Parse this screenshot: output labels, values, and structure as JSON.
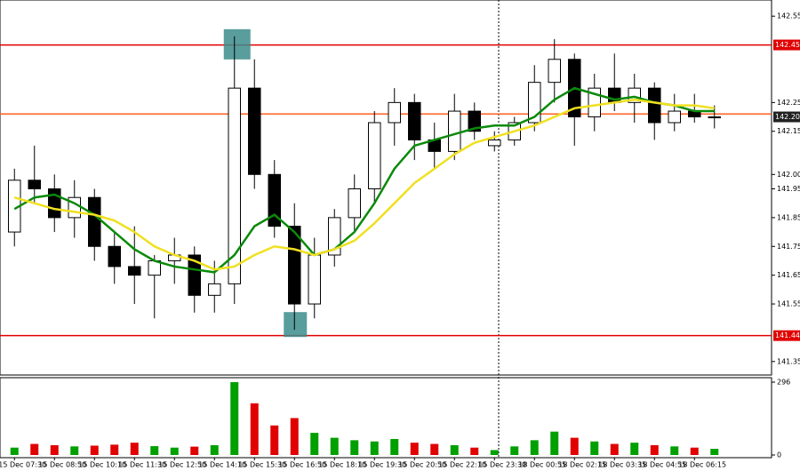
{
  "chart_data": {
    "type": "candlestick",
    "categories": [
      "15 Dec 07:30",
      null,
      "15 Dec 08:50",
      null,
      "15 Dec 10:10",
      null,
      "15 Dec 11:30",
      null,
      "15 Dec 12:50",
      null,
      "15 Dec 14:10",
      null,
      "15 Dec 15:30",
      null,
      "15 Dec 16:50",
      null,
      "15 Dec 18:10",
      null,
      "15 Dec 19:30",
      null,
      "15 Dec 20:50",
      null,
      "15 Dec 22:10",
      null,
      "15 Dec 23:30",
      null,
      "18 Dec 00:55",
      null,
      "18 Dec 02:15",
      null,
      "18 Dec 03:35",
      null,
      "18 Dec 04:55",
      null,
      "18 Dec 06:15",
      null
    ],
    "open": [
      141.8,
      141.98,
      141.95,
      141.85,
      141.92,
      141.75,
      141.68,
      141.65,
      141.7,
      141.72,
      141.58,
      141.62,
      142.3,
      142.0,
      141.82,
      141.55,
      141.72,
      141.85,
      141.95,
      142.18,
      142.25,
      142.12,
      142.08,
      142.22,
      142.1,
      142.12,
      142.18,
      142.32,
      142.4,
      142.2,
      142.3,
      142.25,
      142.3,
      142.18,
      142.22,
      142.2
    ],
    "high": [
      142.02,
      142.1,
      142.0,
      141.98,
      141.95,
      141.8,
      141.82,
      141.72,
      141.78,
      141.75,
      141.7,
      142.48,
      142.4,
      142.05,
      141.9,
      141.78,
      141.88,
      142.0,
      142.22,
      142.3,
      142.28,
      142.18,
      142.28,
      142.25,
      142.15,
      142.2,
      142.38,
      142.47,
      142.42,
      142.35,
      142.42,
      142.35,
      142.32,
      142.28,
      142.28,
      142.24
    ],
    "low": [
      141.75,
      141.9,
      141.8,
      141.78,
      141.7,
      141.62,
      141.55,
      141.5,
      141.62,
      141.52,
      141.52,
      141.55,
      141.95,
      141.78,
      141.46,
      141.5,
      141.68,
      141.8,
      141.9,
      142.1,
      142.05,
      142.02,
      142.05,
      142.12,
      142.08,
      142.1,
      142.15,
      142.25,
      142.1,
      142.15,
      142.22,
      142.18,
      142.12,
      142.15,
      142.18,
      142.16
    ],
    "close": [
      141.98,
      141.95,
      141.85,
      141.92,
      141.75,
      141.68,
      141.65,
      141.7,
      141.72,
      141.58,
      141.62,
      142.3,
      142.0,
      141.82,
      141.55,
      141.72,
      141.85,
      141.95,
      142.18,
      142.25,
      142.12,
      142.08,
      142.22,
      142.15,
      142.12,
      142.18,
      142.32,
      142.4,
      142.2,
      142.3,
      142.25,
      142.3,
      142.18,
      142.22,
      142.2,
      142.2
    ],
    "moving_averages": [
      {
        "color": "#0a8a0a",
        "values": [
          141.88,
          141.92,
          141.93,
          141.9,
          141.86,
          141.8,
          141.74,
          141.7,
          141.68,
          141.67,
          141.66,
          141.72,
          141.82,
          141.86,
          141.8,
          141.72,
          141.74,
          141.8,
          141.9,
          142.02,
          142.1,
          142.12,
          142.14,
          142.16,
          142.17,
          142.17,
          142.2,
          142.26,
          142.3,
          142.28,
          142.26,
          142.27,
          142.25,
          142.24,
          142.22,
          142.22
        ]
      },
      {
        "color": "#f0e020",
        "values": [
          141.92,
          141.9,
          141.88,
          141.87,
          141.86,
          141.84,
          141.8,
          141.75,
          141.72,
          141.7,
          141.67,
          141.68,
          141.72,
          141.75,
          141.74,
          141.72,
          141.74,
          141.77,
          141.83,
          141.9,
          141.97,
          142.02,
          142.07,
          142.11,
          142.13,
          142.15,
          142.17,
          142.2,
          142.23,
          142.24,
          142.25,
          142.26,
          142.25,
          142.24,
          142.24,
          142.23
        ]
      }
    ],
    "volume": [
      30,
      45,
      40,
      35,
      38,
      42,
      50,
      36,
      30,
      34,
      40,
      296,
      210,
      120,
      150,
      90,
      70,
      60,
      55,
      65,
      50,
      45,
      40,
      30,
      20,
      35,
      60,
      95,
      70,
      55,
      45,
      50,
      40,
      35,
      30,
      25
    ],
    "vlim": [
      0,
      296
    ],
    "vticks": [
      296,
      0
    ],
    "ylim": [
      141.3,
      142.6
    ],
    "yticks": [
      142.55,
      142.25,
      142.15,
      {
        "value": 142.0,
        "label": "142.00"
      },
      141.95,
      141.85,
      141.75,
      141.65,
      141.55,
      141.35
    ],
    "levels": [
      {
        "value": 142.45,
        "label": "142.45",
        "color": "#e00000"
      },
      {
        "value": 141.44,
        "label": "141.44",
        "color": "#e00000"
      },
      {
        "value": 142.21,
        "color": "#ff6020"
      }
    ],
    "last": {
      "value": 142.2,
      "label": "142.20"
    },
    "up_color": "#00a000",
    "down_color": "#e00000"
  }
}
